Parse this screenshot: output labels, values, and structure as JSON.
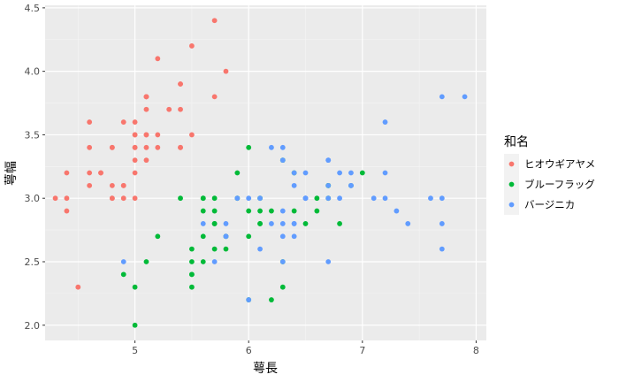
{
  "chart_data": {
    "type": "scatter",
    "xlabel": "萼長",
    "ylabel": "萼幅",
    "xlim": [
      4.21,
      8.09
    ],
    "ylim": [
      1.88,
      4.52
    ],
    "x_ticks": [
      "5",
      "6",
      "7",
      "8"
    ],
    "y_ticks": [
      "2.0",
      "2.5",
      "3.0",
      "3.5",
      "4.0",
      "4.5"
    ],
    "grid": true,
    "legend": {
      "title": "和名",
      "position": "right"
    },
    "series": [
      {
        "name": "ヒオウギアヤメ",
        "color": "#F8766D",
        "points": [
          [
            5.1,
            3.5
          ],
          [
            4.9,
            3.0
          ],
          [
            4.7,
            3.2
          ],
          [
            4.6,
            3.1
          ],
          [
            5.0,
            3.6
          ],
          [
            5.4,
            3.9
          ],
          [
            4.6,
            3.4
          ],
          [
            5.0,
            3.4
          ],
          [
            4.4,
            2.9
          ],
          [
            4.9,
            3.1
          ],
          [
            5.4,
            3.7
          ],
          [
            4.8,
            3.4
          ],
          [
            4.8,
            3.0
          ],
          [
            4.3,
            3.0
          ],
          [
            5.8,
            4.0
          ],
          [
            5.7,
            4.4
          ],
          [
            5.4,
            3.9
          ],
          [
            5.1,
            3.5
          ],
          [
            5.7,
            3.8
          ],
          [
            5.1,
            3.8
          ],
          [
            5.4,
            3.4
          ],
          [
            5.1,
            3.7
          ],
          [
            4.6,
            3.6
          ],
          [
            5.1,
            3.3
          ],
          [
            4.8,
            3.4
          ],
          [
            5.0,
            3.0
          ],
          [
            5.0,
            3.4
          ],
          [
            5.2,
            3.5
          ],
          [
            5.2,
            3.4
          ],
          [
            4.7,
            3.2
          ],
          [
            4.8,
            3.1
          ],
          [
            5.4,
            3.4
          ],
          [
            5.2,
            4.1
          ],
          [
            5.5,
            4.2
          ],
          [
            4.9,
            3.1
          ],
          [
            5.0,
            3.2
          ],
          [
            5.5,
            3.5
          ],
          [
            4.9,
            3.6
          ],
          [
            4.4,
            3.0
          ],
          [
            5.1,
            3.4
          ],
          [
            5.0,
            3.5
          ],
          [
            4.5,
            2.3
          ],
          [
            4.4,
            3.2
          ],
          [
            5.0,
            3.5
          ],
          [
            5.1,
            3.8
          ],
          [
            4.8,
            3.0
          ],
          [
            5.1,
            3.8
          ],
          [
            4.6,
            3.2
          ],
          [
            5.3,
            3.7
          ],
          [
            5.0,
            3.3
          ]
        ]
      },
      {
        "name": "ブルーフラッグ",
        "color": "#00BA38",
        "points": [
          [
            7.0,
            3.2
          ],
          [
            6.4,
            3.2
          ],
          [
            6.9,
            3.1
          ],
          [
            5.5,
            2.3
          ],
          [
            6.5,
            2.8
          ],
          [
            5.7,
            2.8
          ],
          [
            6.3,
            3.3
          ],
          [
            4.9,
            2.4
          ],
          [
            6.6,
            2.9
          ],
          [
            5.2,
            2.7
          ],
          [
            5.0,
            2.0
          ],
          [
            5.9,
            3.0
          ],
          [
            6.0,
            2.2
          ],
          [
            6.1,
            2.9
          ],
          [
            5.6,
            2.9
          ],
          [
            6.7,
            3.1
          ],
          [
            5.6,
            3.0
          ],
          [
            5.8,
            2.7
          ],
          [
            6.2,
            2.2
          ],
          [
            5.6,
            2.5
          ],
          [
            5.9,
            3.2
          ],
          [
            6.1,
            2.8
          ],
          [
            6.3,
            2.5
          ],
          [
            6.1,
            2.8
          ],
          [
            6.4,
            2.9
          ],
          [
            6.6,
            3.0
          ],
          [
            6.8,
            2.8
          ],
          [
            6.7,
            3.0
          ],
          [
            6.0,
            2.9
          ],
          [
            5.7,
            2.6
          ],
          [
            5.5,
            2.4
          ],
          [
            5.5,
            2.4
          ],
          [
            5.8,
            2.7
          ],
          [
            6.0,
            2.7
          ],
          [
            5.4,
            3.0
          ],
          [
            6.0,
            3.4
          ],
          [
            6.7,
            3.1
          ],
          [
            6.3,
            2.3
          ],
          [
            5.6,
            3.0
          ],
          [
            5.5,
            2.5
          ],
          [
            5.5,
            2.6
          ],
          [
            6.1,
            3.0
          ],
          [
            5.8,
            2.6
          ],
          [
            5.0,
            2.3
          ],
          [
            5.6,
            2.7
          ],
          [
            5.7,
            3.0
          ],
          [
            5.7,
            2.9
          ],
          [
            6.2,
            2.9
          ],
          [
            5.1,
            2.5
          ],
          [
            5.7,
            2.8
          ]
        ]
      },
      {
        "name": "バージニカ",
        "color": "#619CFF",
        "points": [
          [
            6.3,
            3.3
          ],
          [
            5.8,
            2.7
          ],
          [
            7.1,
            3.0
          ],
          [
            6.3,
            2.9
          ],
          [
            6.5,
            3.0
          ],
          [
            7.6,
            3.0
          ],
          [
            4.9,
            2.5
          ],
          [
            7.3,
            2.9
          ],
          [
            6.7,
            2.5
          ],
          [
            7.2,
            3.6
          ],
          [
            6.5,
            3.2
          ],
          [
            6.4,
            2.7
          ],
          [
            6.8,
            3.0
          ],
          [
            5.7,
            2.5
          ],
          [
            5.8,
            2.8
          ],
          [
            6.4,
            3.2
          ],
          [
            6.5,
            3.0
          ],
          [
            7.7,
            3.8
          ],
          [
            7.7,
            2.6
          ],
          [
            6.0,
            2.2
          ],
          [
            6.9,
            3.2
          ],
          [
            5.6,
            2.8
          ],
          [
            7.7,
            2.8
          ],
          [
            6.3,
            2.7
          ],
          [
            6.7,
            3.3
          ],
          [
            7.2,
            3.2
          ],
          [
            6.2,
            2.8
          ],
          [
            6.1,
            3.0
          ],
          [
            6.4,
            2.8
          ],
          [
            7.2,
            3.0
          ],
          [
            7.4,
            2.8
          ],
          [
            7.9,
            3.8
          ],
          [
            6.4,
            2.8
          ],
          [
            6.3,
            2.8
          ],
          [
            6.1,
            2.6
          ],
          [
            7.7,
            3.0
          ],
          [
            6.3,
            3.4
          ],
          [
            6.4,
            3.1
          ],
          [
            6.0,
            3.0
          ],
          [
            6.9,
            3.1
          ],
          [
            6.7,
            3.1
          ],
          [
            6.9,
            3.1
          ],
          [
            5.8,
            2.7
          ],
          [
            6.8,
            3.2
          ],
          [
            6.7,
            3.3
          ],
          [
            6.7,
            3.0
          ],
          [
            6.3,
            2.5
          ],
          [
            6.5,
            3.0
          ],
          [
            6.2,
            3.4
          ],
          [
            5.9,
            3.0
          ]
        ]
      }
    ]
  }
}
